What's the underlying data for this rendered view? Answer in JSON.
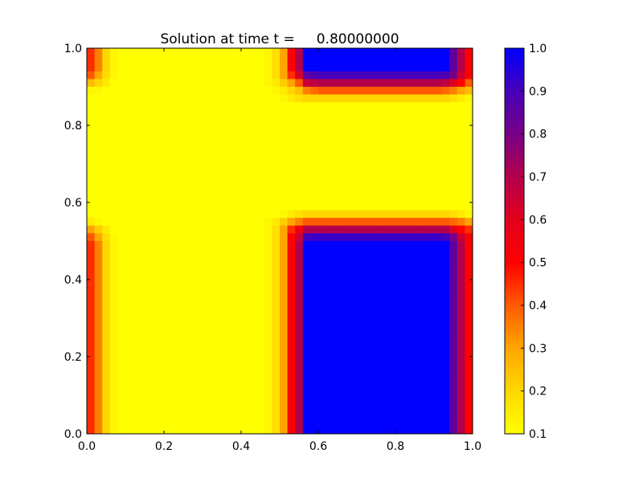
{
  "chart_data": {
    "type": "heatmap",
    "title": "Solution at time t =     0.80000000",
    "xlabel": "",
    "ylabel": "",
    "xlim": [
      0.0,
      1.0
    ],
    "ylim": [
      0.0,
      1.0
    ],
    "x_ticks": [
      "0.0",
      "0.2",
      "0.4",
      "0.6",
      "0.8",
      "1.0"
    ],
    "y_ticks": [
      "0.0",
      "0.2",
      "0.4",
      "0.6",
      "0.8",
      "1.0"
    ],
    "grid": false,
    "grid_size": [
      50,
      50
    ],
    "background_value": 0.1,
    "vmin": 0.1,
    "vmax": 1.0,
    "colorbar": {
      "placement": "right",
      "ticks": [
        "0.1",
        "0.2",
        "0.3",
        "0.4",
        "0.5",
        "0.6",
        "0.7",
        "0.8",
        "0.9",
        "1.0"
      ],
      "colormap": [
        {
          "value": 0.1,
          "color": "#ffff00"
        },
        {
          "value": 0.2,
          "color": "#ffd700"
        },
        {
          "value": 0.3,
          "color": "#ffa500"
        },
        {
          "value": 0.4,
          "color": "#ff5a00"
        },
        {
          "value": 0.5,
          "color": "#ff0000"
        },
        {
          "value": 0.6,
          "color": "#e1001e"
        },
        {
          "value": 0.7,
          "color": "#b4004b"
        },
        {
          "value": 0.8,
          "color": "#780087"
        },
        {
          "value": 0.9,
          "color": "#4600b9"
        },
        {
          "value": 1.0,
          "color": "#0000ff"
        }
      ]
    },
    "column_profile": [
      0.45,
      0.35,
      0.2,
      0.12,
      0.1,
      0.1,
      0.1,
      0.1,
      0.1,
      0.1,
      0.1,
      0.1,
      0.1,
      0.1,
      0.1,
      0.1,
      0.1,
      0.1,
      0.1,
      0.1,
      0.1,
      0.1,
      0.1,
      0.12,
      0.18,
      0.3,
      0.5,
      0.7,
      1.0,
      1.0,
      1.0,
      1.0,
      1.0,
      1.0,
      1.0,
      1.0,
      1.0,
      1.0,
      1.0,
      1.0,
      1.0,
      1.0,
      1.0,
      1.0,
      1.0,
      1.0,
      1.0,
      0.85,
      0.7,
      0.5
    ],
    "rows_top_region": [
      {
        "row": 0,
        "profile": [
          0.45,
          0.35,
          0.2,
          0.12,
          0.1,
          0.1,
          0.1,
          0.1,
          0.1,
          0.1,
          0.1,
          0.1,
          0.1,
          0.1,
          0.1,
          0.1,
          0.1,
          0.1,
          0.1,
          0.1,
          0.1,
          0.1,
          0.1,
          0.12,
          0.18,
          0.3,
          0.5,
          0.7,
          1.0,
          1.0,
          1.0,
          1.0,
          1.0,
          1.0,
          1.0,
          1.0,
          1.0,
          1.0,
          1.0,
          1.0,
          1.0,
          1.0,
          1.0,
          1.0,
          1.0,
          1.0,
          1.0,
          0.85,
          0.7,
          0.5
        ]
      },
      {
        "row": 3,
        "profile": [
          0.4,
          0.3,
          0.18,
          0.12,
          0.1,
          0.1,
          0.1,
          0.1,
          0.1,
          0.1,
          0.1,
          0.1,
          0.1,
          0.1,
          0.1,
          0.1,
          0.1,
          0.1,
          0.1,
          0.1,
          0.1,
          0.1,
          0.1,
          0.12,
          0.18,
          0.3,
          0.45,
          0.62,
          0.85,
          0.88,
          0.9,
          0.9,
          0.9,
          0.9,
          0.9,
          0.9,
          0.9,
          0.9,
          0.9,
          0.9,
          0.9,
          0.9,
          0.9,
          0.9,
          0.9,
          0.9,
          0.88,
          0.8,
          0.65,
          0.5
        ]
      },
      {
        "row": 4,
        "profile": [
          0.25,
          0.2,
          0.15,
          0.1,
          0.1,
          0.1,
          0.1,
          0.1,
          0.1,
          0.1,
          0.1,
          0.1,
          0.1,
          0.1,
          0.1,
          0.1,
          0.1,
          0.1,
          0.1,
          0.1,
          0.1,
          0.1,
          0.1,
          0.12,
          0.15,
          0.22,
          0.3,
          0.4,
          0.65,
          0.68,
          0.7,
          0.7,
          0.7,
          0.7,
          0.7,
          0.7,
          0.7,
          0.7,
          0.7,
          0.7,
          0.7,
          0.7,
          0.7,
          0.7,
          0.7,
          0.7,
          0.68,
          0.6,
          0.5,
          0.4
        ]
      },
      {
        "row": 5,
        "profile": [
          0.12,
          0.12,
          0.1,
          0.1,
          0.1,
          0.1,
          0.1,
          0.1,
          0.1,
          0.1,
          0.1,
          0.1,
          0.1,
          0.1,
          0.1,
          0.1,
          0.1,
          0.1,
          0.1,
          0.1,
          0.1,
          0.1,
          0.1,
          0.1,
          0.12,
          0.15,
          0.2,
          0.25,
          0.35,
          0.38,
          0.4,
          0.4,
          0.4,
          0.4,
          0.4,
          0.4,
          0.4,
          0.4,
          0.4,
          0.4,
          0.4,
          0.4,
          0.4,
          0.4,
          0.4,
          0.4,
          0.38,
          0.35,
          0.3,
          0.25
        ]
      },
      {
        "row": 6,
        "profile": [
          0.1,
          0.1,
          0.1,
          0.1,
          0.1,
          0.1,
          0.1,
          0.1,
          0.1,
          0.1,
          0.1,
          0.1,
          0.1,
          0.1,
          0.1,
          0.1,
          0.1,
          0.1,
          0.1,
          0.1,
          0.1,
          0.1,
          0.1,
          0.1,
          0.1,
          0.12,
          0.15,
          0.18,
          0.2,
          0.2,
          0.2,
          0.2,
          0.2,
          0.2,
          0.2,
          0.2,
          0.2,
          0.2,
          0.2,
          0.2,
          0.2,
          0.2,
          0.2,
          0.2,
          0.2,
          0.2,
          0.2,
          0.18,
          0.15,
          0.12
        ]
      }
    ],
    "rows_lower_region": [
      {
        "row": 21,
        "profile": [
          0.1,
          0.1,
          0.1,
          0.1,
          0.1,
          0.1,
          0.1,
          0.1,
          0.1,
          0.1,
          0.1,
          0.1,
          0.1,
          0.1,
          0.1,
          0.1,
          0.1,
          0.1,
          0.1,
          0.1,
          0.1,
          0.1,
          0.1,
          0.1,
          0.1,
          0.12,
          0.15,
          0.18,
          0.2,
          0.2,
          0.2,
          0.2,
          0.2,
          0.2,
          0.2,
          0.2,
          0.2,
          0.2,
          0.2,
          0.2,
          0.2,
          0.2,
          0.2,
          0.2,
          0.2,
          0.2,
          0.2,
          0.18,
          0.15,
          0.12
        ]
      },
      {
        "row": 22,
        "profile": [
          0.15,
          0.12,
          0.1,
          0.1,
          0.1,
          0.1,
          0.1,
          0.1,
          0.1,
          0.1,
          0.1,
          0.1,
          0.1,
          0.1,
          0.1,
          0.1,
          0.1,
          0.1,
          0.1,
          0.1,
          0.1,
          0.1,
          0.1,
          0.12,
          0.15,
          0.22,
          0.3,
          0.35,
          0.4,
          0.4,
          0.4,
          0.4,
          0.4,
          0.4,
          0.4,
          0.4,
          0.4,
          0.4,
          0.4,
          0.4,
          0.4,
          0.4,
          0.4,
          0.4,
          0.4,
          0.4,
          0.4,
          0.38,
          0.35,
          0.3
        ]
      },
      {
        "row": 23,
        "profile": [
          0.3,
          0.22,
          0.15,
          0.1,
          0.1,
          0.1,
          0.1,
          0.1,
          0.1,
          0.1,
          0.1,
          0.1,
          0.1,
          0.1,
          0.1,
          0.1,
          0.1,
          0.1,
          0.1,
          0.1,
          0.1,
          0.1,
          0.1,
          0.12,
          0.18,
          0.3,
          0.45,
          0.55,
          0.7,
          0.7,
          0.7,
          0.7,
          0.7,
          0.7,
          0.7,
          0.7,
          0.7,
          0.7,
          0.7,
          0.7,
          0.7,
          0.7,
          0.7,
          0.7,
          0.7,
          0.7,
          0.7,
          0.6,
          0.5,
          0.45
        ]
      },
      {
        "row": 24,
        "profile": [
          0.4,
          0.3,
          0.18,
          0.12,
          0.1,
          0.1,
          0.1,
          0.1,
          0.1,
          0.1,
          0.1,
          0.1,
          0.1,
          0.1,
          0.1,
          0.1,
          0.1,
          0.1,
          0.1,
          0.1,
          0.1,
          0.1,
          0.1,
          0.12,
          0.18,
          0.3,
          0.5,
          0.65,
          0.9,
          0.92,
          0.92,
          0.92,
          0.92,
          0.92,
          0.92,
          0.92,
          0.92,
          0.92,
          0.92,
          0.92,
          0.92,
          0.92,
          0.92,
          0.92,
          0.92,
          0.92,
          0.9,
          0.8,
          0.65,
          0.5
        ]
      },
      {
        "row": 25,
        "profile": [
          0.45,
          0.35,
          0.2,
          0.12,
          0.1,
          0.1,
          0.1,
          0.1,
          0.1,
          0.1,
          0.1,
          0.1,
          0.1,
          0.1,
          0.1,
          0.1,
          0.1,
          0.1,
          0.1,
          0.1,
          0.1,
          0.1,
          0.1,
          0.12,
          0.18,
          0.3,
          0.5,
          0.7,
          1.0,
          1.0,
          1.0,
          1.0,
          1.0,
          1.0,
          1.0,
          1.0,
          1.0,
          1.0,
          1.0,
          1.0,
          1.0,
          1.0,
          1.0,
          1.0,
          1.0,
          1.0,
          1.0,
          0.85,
          0.7,
          0.5
        ]
      }
    ],
    "region_rows": {
      "top_full": [
        0,
        2
      ],
      "upper_yellow": [
        7,
        20
      ],
      "lower_full": [
        25,
        49
      ]
    }
  }
}
